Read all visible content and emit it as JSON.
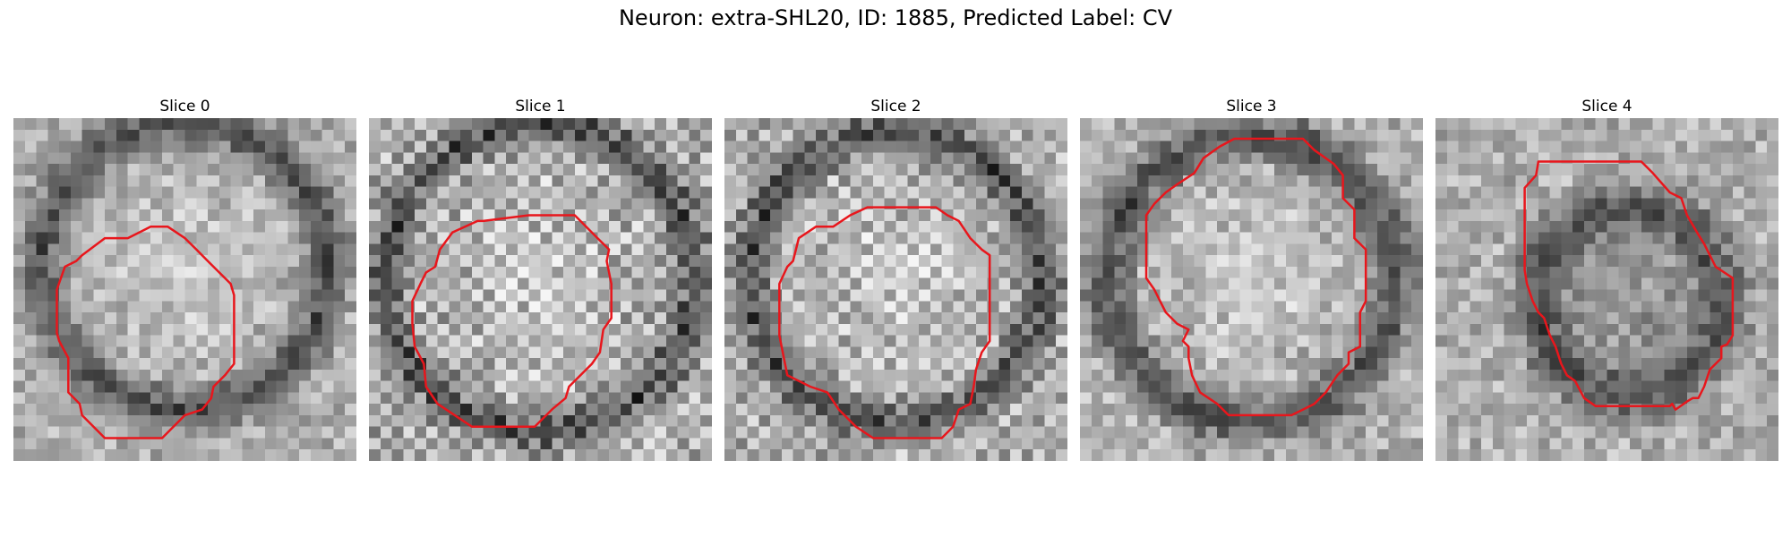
{
  "title": "Neuron: extra-SHL20, ID: 1885, Predicted Label: CV",
  "panels": [
    {
      "label": "Slice 0"
    },
    {
      "label": "Slice 1"
    },
    {
      "label": "Slice 2"
    },
    {
      "label": "Slice 3"
    },
    {
      "label": "Slice 4"
    }
  ],
  "colors": {
    "contour": "#e8161c",
    "background": "#ffffff"
  }
}
